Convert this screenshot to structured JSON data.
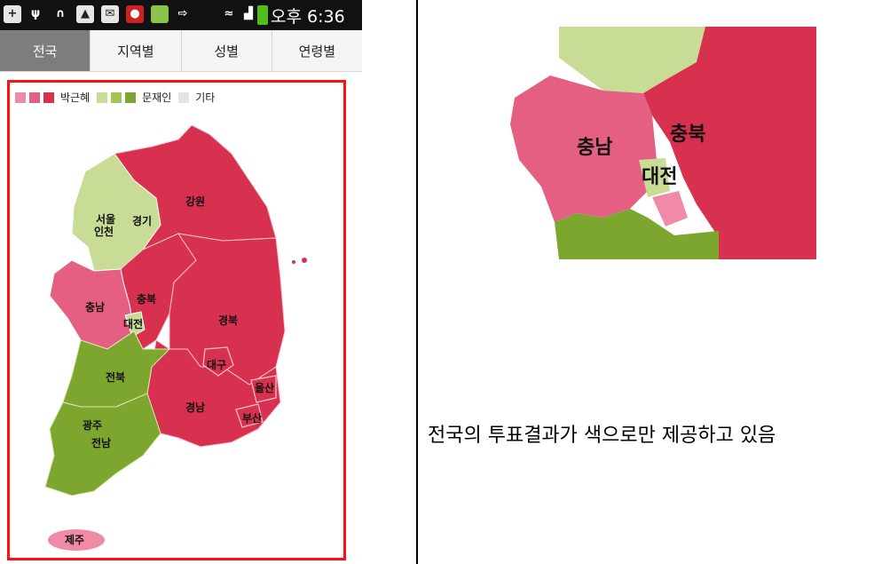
{
  "statusbar": {
    "icons": [
      "plus-icon",
      "usb-icon",
      "headset-icon",
      "image-icon",
      "mail-icon",
      "record-icon",
      "android-icon",
      "export-icon",
      "wifi-icon",
      "signal-icon",
      "battery-icon"
    ],
    "time": "오후 6:36"
  },
  "tabs": [
    {
      "label": "전국",
      "active": true
    },
    {
      "label": "지역별",
      "active": false
    },
    {
      "label": "성별",
      "active": false
    },
    {
      "label": "연령별",
      "active": false
    }
  ],
  "legend": {
    "park": {
      "label": "박근혜",
      "colors": [
        "#f18aa6",
        "#e45f82",
        "#d8304f"
      ]
    },
    "moon": {
      "label": "문재인",
      "colors": [
        "#c8dc96",
        "#a6c455",
        "#7da62e"
      ]
    },
    "other": {
      "label": "기타",
      "colors": [
        "#e4e4e4"
      ]
    }
  },
  "regions": {
    "seoul": "서울",
    "incheon": "인천",
    "gyeonggi": "경기",
    "gangwon": "강원",
    "chungnam": "충남",
    "chungbuk": "충북",
    "daejeon": "대전",
    "gyeongbuk": "경북",
    "daegu": "대구",
    "ulsan": "울산",
    "jeonbuk": "전북",
    "gwangju": "광주",
    "jeonnam": "전남",
    "gyeongnam": "경남",
    "busan": "부산",
    "jeju": "제주"
  },
  "colors": {
    "park_dark": "#d8304f",
    "park_mid": "#e45f82",
    "park_light": "#f18aa6",
    "moon_light": "#c8dc96",
    "moon_dark": "#7da62e",
    "frame": "#ff1111"
  },
  "zoom_labels": {
    "chungnam": "충남",
    "chungbuk": "충북",
    "daejeon": "대전"
  },
  "caption": "전국의 투표결과가 색으로만 제공하고 있음"
}
